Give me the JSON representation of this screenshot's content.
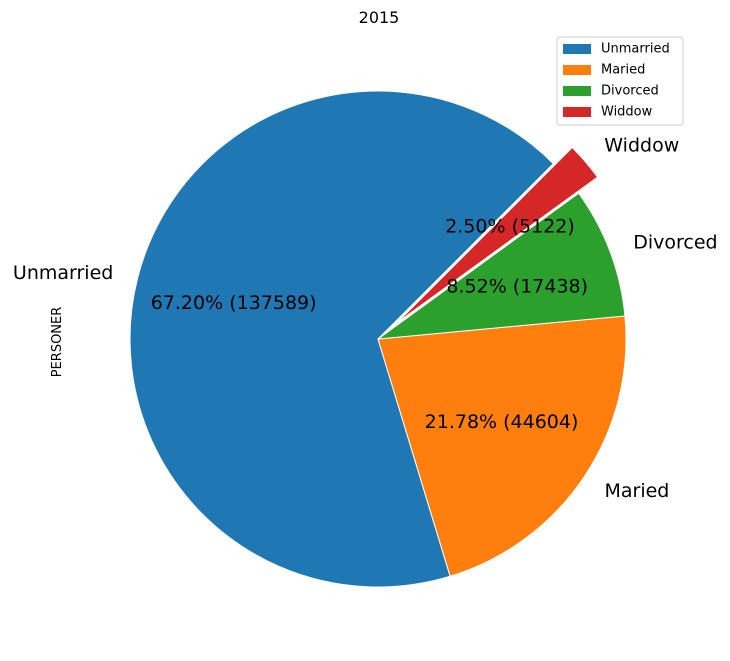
{
  "chart_data": {
    "type": "pie",
    "title": "2015",
    "ylabel": "PERSONER",
    "categories": [
      "Unmarried",
      "Maried",
      "Divorced",
      "Widdow"
    ],
    "values": [
      137589,
      44604,
      17438,
      5122
    ],
    "percent_labels": [
      "67.20%  (137589)",
      "21.78%  (44604)",
      "8.52%  (17438)",
      "2.50%  (5122)"
    ],
    "colors": [
      "#1f77b4",
      "#ff7f0e",
      "#2ca02c",
      "#d62728"
    ],
    "exploded": [
      "Widdow"
    ],
    "start_angle_deg": 45,
    "legend": {
      "placement": "upper right",
      "entries": [
        "Unmarried",
        "Maried",
        "Divorced",
        "Widdow"
      ]
    }
  }
}
